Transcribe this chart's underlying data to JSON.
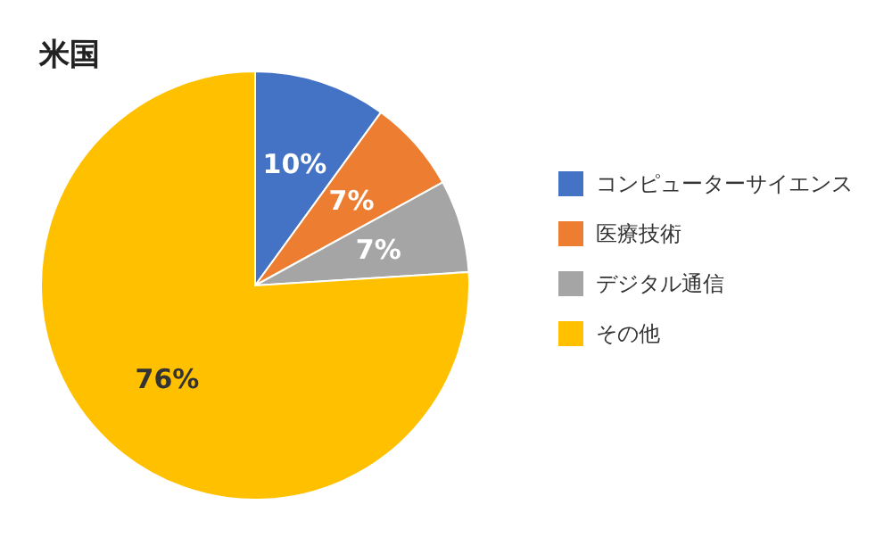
{
  "chart_data": {
    "type": "pie",
    "title": "米国",
    "categories": [
      "コンピューターサイエンス",
      "医療技術",
      "デジタル通信",
      "その他"
    ],
    "values": [
      10,
      7,
      7,
      76
    ],
    "colors": [
      "#4472c4",
      "#ed7d31",
      "#a5a5a5",
      "#ffc000"
    ],
    "value_labels": [
      "10%",
      "7%",
      "7%",
      "76%"
    ],
    "legend": "right"
  }
}
